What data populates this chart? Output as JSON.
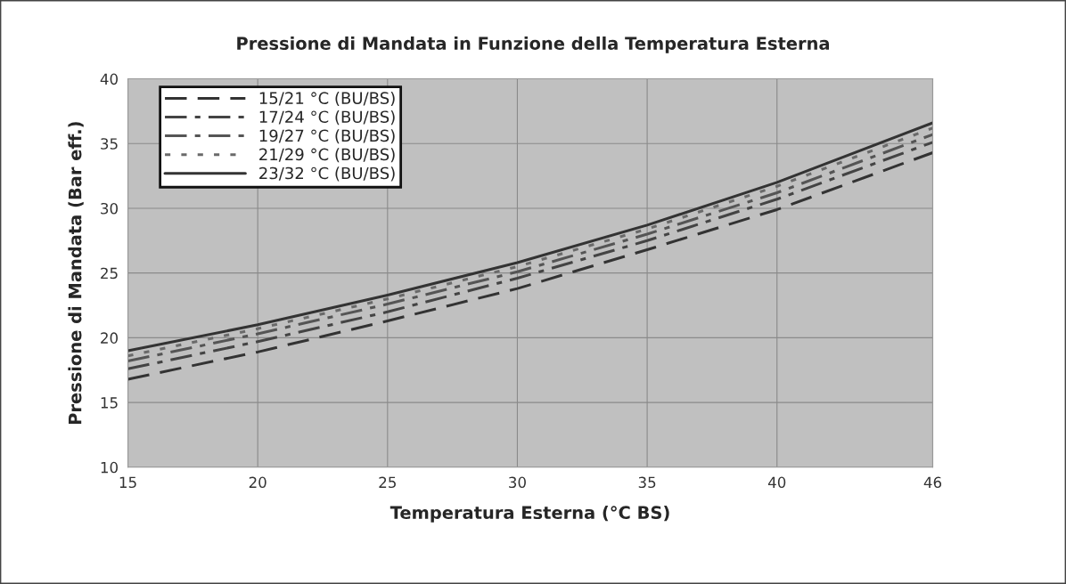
{
  "chart_data": {
    "type": "line",
    "title": "Pressione di Mandata in Funzione della Temperatura Esterna",
    "xlabel": "Temperatura Esterna (°C BS)",
    "ylabel": "Pressione di Mandata (Bar eff.)",
    "x": [
      15,
      20,
      25,
      30,
      35,
      40,
      46
    ],
    "series": [
      {
        "name": "15/21 °C (BU/BS)",
        "color": "#333333",
        "line_style": "dashed",
        "values": [
          16.8,
          18.9,
          21.3,
          23.8,
          26.8,
          29.9,
          34.3
        ]
      },
      {
        "name": "17/24 °C (BU/BS)",
        "color": "#444444",
        "line_style": "dashdot",
        "values": [
          17.6,
          19.7,
          22.0,
          24.6,
          27.5,
          30.7,
          35.1
        ]
      },
      {
        "name": "19/27 °C (BU/BS)",
        "color": "#555555",
        "line_style": "dashdot",
        "values": [
          18.2,
          20.3,
          22.6,
          25.1,
          28.0,
          31.2,
          35.7
        ]
      },
      {
        "name": "21/29 °C (BU/BS)",
        "color": "#6a6a6a",
        "line_style": "dotted",
        "values": [
          18.6,
          20.7,
          23.0,
          25.5,
          28.4,
          31.7,
          36.2
        ]
      },
      {
        "name": "23/32 °C (BU/BS)",
        "color": "#333333",
        "line_style": "solid",
        "values": [
          19.0,
          21.0,
          23.3,
          25.8,
          28.7,
          32.0,
          36.6
        ]
      }
    ],
    "xlim": [
      15,
      46
    ],
    "xticks": [
      15,
      20,
      25,
      30,
      35,
      40,
      46
    ],
    "ylim": [
      10,
      40
    ],
    "yticks": [
      10,
      15,
      20,
      25,
      30,
      35,
      40
    ],
    "grid": true,
    "legend": "top left"
  }
}
